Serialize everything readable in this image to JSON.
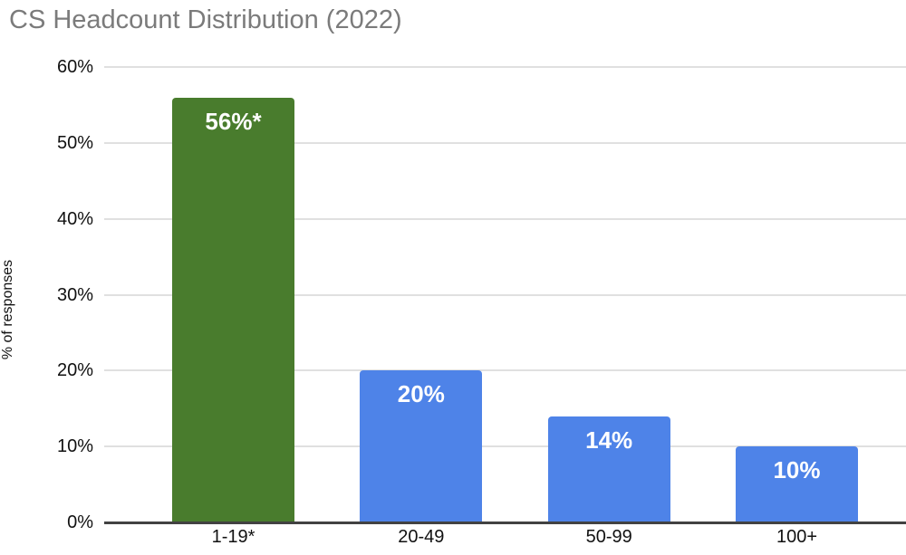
{
  "colors": {
    "background": "#ffffff",
    "title_text": "#7b7b7b",
    "axis_text": "#111111",
    "gridline": "#e0e0e0",
    "axis_line": "#424242",
    "bar_label_text": "#ffffff",
    "green_bar": "#497c2d",
    "blue_bar": "#4e83e8"
  },
  "chart_data": {
    "type": "bar",
    "title": "CS Headcount Distribution (2022)",
    "xlabel": "",
    "ylabel": "% of responses",
    "categories": [
      "1-19*",
      "20-49",
      "50-99",
      "100+"
    ],
    "values": [
      56,
      20,
      14,
      10
    ],
    "value_labels": [
      "56%*",
      "20%",
      "14%",
      "10%"
    ],
    "bar_colors": [
      "#497c2d",
      "#4e83e8",
      "#4e83e8",
      "#4e83e8"
    ],
    "ylim": [
      0,
      60
    ],
    "ytick_values": [
      0,
      10,
      20,
      30,
      40,
      50,
      60
    ],
    "ytick_labels": [
      "0%",
      "10%",
      "20%",
      "30%",
      "40%",
      "50%",
      "60%"
    ],
    "grid": true,
    "legend": "none"
  }
}
